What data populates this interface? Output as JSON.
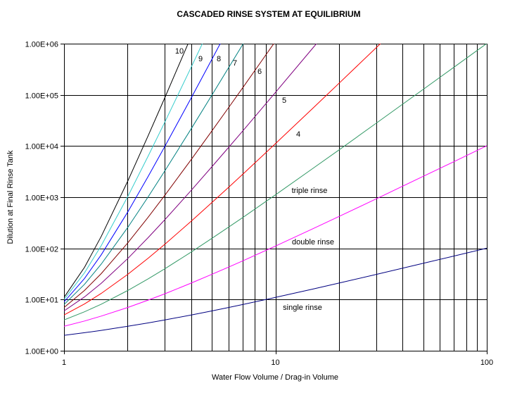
{
  "chart_data": {
    "type": "line",
    "title": "CASCADED RINSE SYSTEM AT EQUILIBRIUM",
    "xlabel": "Water Flow Volume / Drag-in Volume",
    "ylabel": "Dilution at Final Rinse Tank",
    "xscale": "log",
    "yscale": "log",
    "xlim": [
      1,
      100
    ],
    "ylim": [
      1,
      1000000
    ],
    "grid": true,
    "x_tick_labels": [
      "1",
      "10",
      "100"
    ],
    "y_tick_labels": [
      "1.00E+00",
      "1.00E+01",
      "1.00E+02",
      "1.00E+03",
      "1.00E+04",
      "1.00E+05",
      "1.00E+06"
    ],
    "x": [
      1,
      1.25,
      1.5,
      2,
      2.5,
      3,
      4,
      5,
      6,
      7,
      10,
      15,
      20,
      30,
      50,
      70,
      100
    ],
    "series": [
      {
        "name": "single rinse",
        "color": "#000080",
        "values": [
          2,
          2.25,
          2.5,
          3,
          3.5,
          4,
          5,
          6,
          7,
          8,
          11,
          16,
          21,
          31,
          51,
          71,
          101
        ]
      },
      {
        "name": "double rinse",
        "color": "#FF00FF",
        "values": [
          3,
          3.81,
          4.75,
          7,
          9.75,
          13,
          21,
          31,
          43,
          57,
          111,
          241,
          421,
          931,
          2551,
          4971,
          10101
        ]
      },
      {
        "name": "triple rinse",
        "color": "#339966",
        "values": [
          4,
          5.77,
          8.13,
          15,
          25.4,
          40,
          85,
          156,
          259,
          400,
          1111,
          3616,
          8421,
          27931,
          127551,
          347971,
          1010101
        ]
      },
      {
        "name": "4",
        "color": "#FF0000",
        "values": [
          5,
          8.21,
          13.19,
          31,
          64.4,
          121,
          341,
          781,
          1555,
          2801,
          11111,
          54241,
          168421,
          837931,
          6377551,
          null,
          null
        ]
      },
      {
        "name": "5",
        "color": "#800080",
        "values": [
          6,
          11.26,
          20.78,
          63,
          162,
          364,
          1365,
          3906,
          9331,
          19608,
          111111,
          813616,
          3368421,
          null,
          null,
          null,
          null
        ]
      },
      {
        "name": "6",
        "color": "#800000",
        "values": [
          7,
          15.07,
          32.17,
          127,
          406,
          1093,
          5461,
          19531,
          55987,
          137257,
          1111111,
          null,
          null,
          null,
          null,
          null,
          null
        ]
      },
      {
        "name": "7",
        "color": "#008080",
        "values": [
          8,
          19.84,
          49.26,
          255,
          1017,
          3280,
          21845,
          97656,
          335923,
          960800,
          11111111,
          null,
          null,
          null,
          null,
          null,
          null
        ]
      },
      {
        "name": "8",
        "color": "#0000FF",
        "values": [
          9,
          25.8,
          74.9,
          511,
          2543,
          9841,
          87381,
          488281,
          2015539,
          null,
          null,
          null,
          null,
          null,
          null,
          null,
          null
        ]
      },
      {
        "name": "9",
        "color": "#33CCCC",
        "values": [
          10,
          33.25,
          113.3,
          1023,
          6357,
          29524,
          349525,
          2441406,
          null,
          null,
          null,
          null,
          null,
          null,
          null,
          null,
          null
        ]
      },
      {
        "name": "10",
        "color": "#000000",
        "values": [
          11,
          42.6,
          171,
          2047,
          15894,
          88573,
          1398101,
          null,
          null,
          null,
          null,
          null,
          null,
          null,
          null,
          null,
          null
        ]
      }
    ],
    "annotations": [
      "10",
      "9",
      "8",
      "7",
      "6",
      "5",
      "4",
      "triple rinse",
      "double rinse",
      "single rinse"
    ]
  }
}
